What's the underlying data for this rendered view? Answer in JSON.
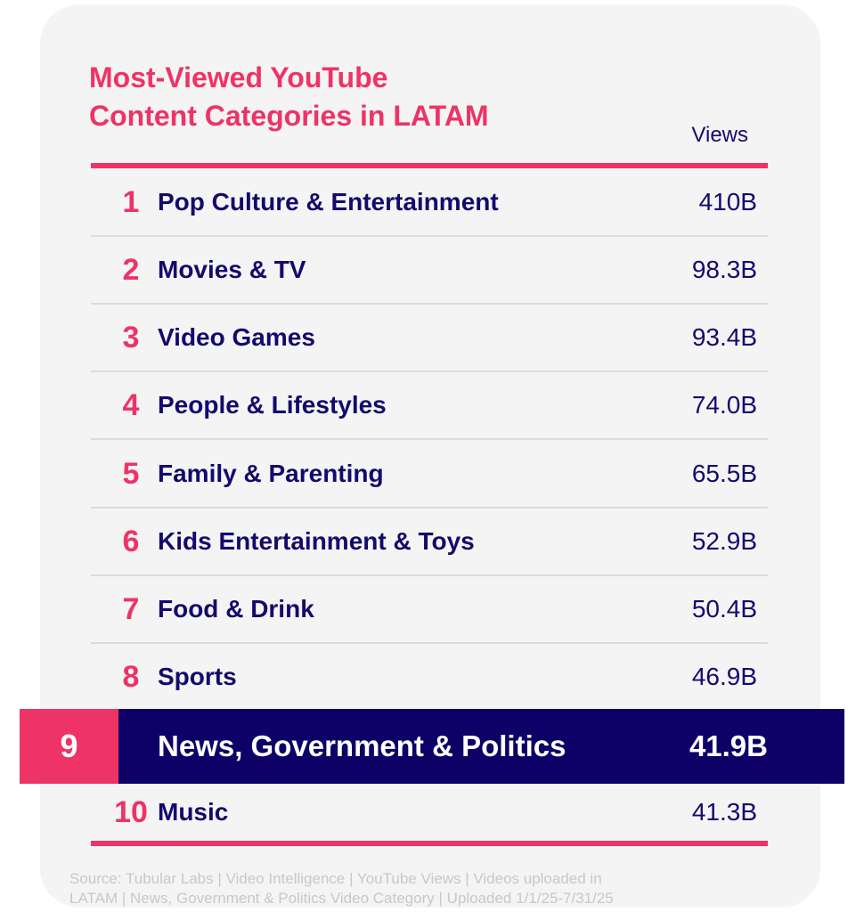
{
  "title_line1": "Most-Viewed YouTube",
  "title_line2": "Content Categories in LATAM",
  "views_header": "Views",
  "rows": [
    {
      "rank": "1",
      "category": "Pop Culture & Entertainment",
      "views": "410B"
    },
    {
      "rank": "2",
      "category": "Movies & TV",
      "views": "98.3B"
    },
    {
      "rank": "3",
      "category": "Video Games",
      "views": "93.4B"
    },
    {
      "rank": "4",
      "category": "People & Lifestyles",
      "views": "74.0B"
    },
    {
      "rank": "5",
      "category": "Family & Parenting",
      "views": "65.5B"
    },
    {
      "rank": "6",
      "category": "Kids Entertainment & Toys",
      "views": "52.9B"
    },
    {
      "rank": "7",
      "category": "Food & Drink",
      "views": "50.4B"
    },
    {
      "rank": "8",
      "category": "Sports",
      "views": "46.9B"
    },
    {
      "rank": "9",
      "category": "News, Government & Politics",
      "views": "41.9B",
      "highlighted": true
    },
    {
      "rank": "10",
      "category": "Music",
      "views": "41.3B"
    }
  ],
  "footer_line1": "Source: Tubular Labs | Video Intelligence | YouTube Views | Videos uploaded in",
  "footer_line2": "LATAM | News, Government & Politics Video Category | Uploaded 1/1/25-7/31/25",
  "colors": {
    "accent": "#ee3366",
    "navy": "#0e0066",
    "card": "#f4f4f4"
  }
}
